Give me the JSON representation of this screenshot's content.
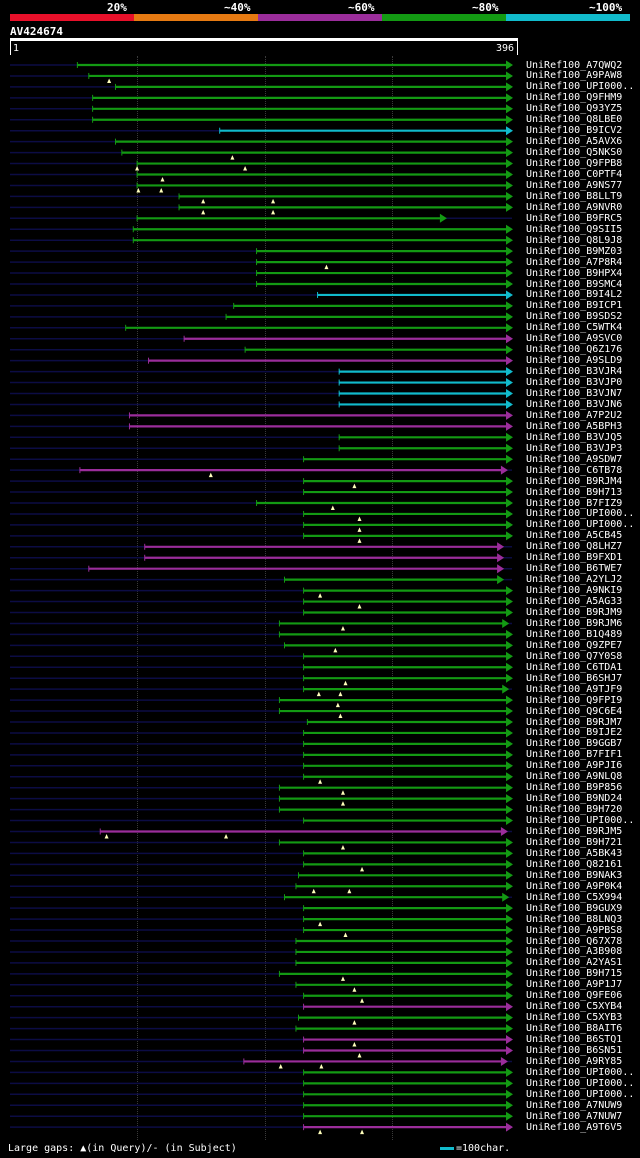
{
  "legend": {
    "items": [
      {
        "label": "20%",
        "color": "#e8102a"
      },
      {
        "label": "~40%",
        "color": "#e67a12"
      },
      {
        "label": "~60%",
        "color": "#9b2d9b"
      },
      {
        "label": "~80%",
        "color": "#139a13"
      },
      {
        "label": "~100%",
        "color": "#11bbcc"
      }
    ]
  },
  "query": {
    "name": "AV424674",
    "start_label": "1",
    "end_label": "396"
  },
  "footer": {
    "gaps_text": "Large gaps: ▲(in Query)/- (in Subject)",
    "scale_text": "=100char."
  },
  "chart_data": {
    "type": "alignment-overview",
    "query_length": 396,
    "identity_colors": {
      "g": "#139a13",
      "c": "#11bbcc",
      "p": "#9b2d9b"
    },
    "hits": [
      {
        "name": "UniRef100_A7QWQ2",
        "start": 54,
        "end": 396,
        "color": "g",
        "marks": []
      },
      {
        "name": "UniRef100_A9PAW8",
        "start": 63,
        "end": 396,
        "color": "g",
        "marks": [
          79
        ]
      },
      {
        "name": "UniRef100_UPI000..",
        "start": 84,
        "end": 396,
        "color": "g",
        "marks": []
      },
      {
        "name": "UniRef100_Q9FHM9",
        "start": 66,
        "end": 396,
        "color": "g",
        "marks": []
      },
      {
        "name": "UniRef100_Q93YZ5",
        "start": 66,
        "end": 396,
        "color": "g",
        "marks": []
      },
      {
        "name": "UniRef100_Q8LBE0",
        "start": 66,
        "end": 396,
        "color": "g",
        "marks": []
      },
      {
        "name": "UniRef100_B9ICV2",
        "start": 166,
        "end": 396,
        "color": "c",
        "marks": []
      },
      {
        "name": "UniRef100_A5AVX6",
        "start": 84,
        "end": 396,
        "color": "g",
        "marks": []
      },
      {
        "name": "UniRef100_Q5NKS0",
        "start": 89,
        "end": 396,
        "color": "g",
        "marks": [
          176
        ]
      },
      {
        "name": "UniRef100_Q9FPB8",
        "start": 101,
        "end": 396,
        "color": "g",
        "marks": [
          101,
          186
        ]
      },
      {
        "name": "UniRef100_C0PTF4",
        "start": 101,
        "end": 396,
        "color": "g",
        "marks": [
          121
        ]
      },
      {
        "name": "UniRef100_A9NS77",
        "start": 101,
        "end": 396,
        "color": "g",
        "marks": [
          102,
          120
        ]
      },
      {
        "name": "UniRef100_B8LLT9",
        "start": 134,
        "end": 396,
        "color": "g",
        "marks": [
          153,
          208
        ]
      },
      {
        "name": "UniRef100_A9NVR0",
        "start": 134,
        "end": 396,
        "color": "g",
        "marks": [
          153,
          208
        ]
      },
      {
        "name": "UniRef100_B9FRC5",
        "start": 101,
        "end": 344,
        "color": "g",
        "marks": []
      },
      {
        "name": "UniRef100_Q9SII5",
        "start": 98,
        "end": 396,
        "color": "g",
        "marks": []
      },
      {
        "name": "UniRef100_Q8L9J8",
        "start": 98,
        "end": 396,
        "color": "g",
        "marks": []
      },
      {
        "name": "UniRef100_B9MZ03",
        "start": 195,
        "end": 396,
        "color": "g",
        "marks": []
      },
      {
        "name": "UniRef100_A7P8R4",
        "start": 195,
        "end": 396,
        "color": "g",
        "marks": [
          250
        ]
      },
      {
        "name": "UniRef100_B9HPX4",
        "start": 195,
        "end": 396,
        "color": "g",
        "marks": []
      },
      {
        "name": "UniRef100_B9SMC4",
        "start": 195,
        "end": 396,
        "color": "g",
        "marks": []
      },
      {
        "name": "UniRef100_B9I4L2",
        "start": 243,
        "end": 396,
        "color": "c",
        "marks": []
      },
      {
        "name": "UniRef100_B9ICP1",
        "start": 177,
        "end": 396,
        "color": "g",
        "marks": []
      },
      {
        "name": "UniRef100_B9SDS2",
        "start": 171,
        "end": 396,
        "color": "g",
        "marks": []
      },
      {
        "name": "UniRef100_C5WTK4",
        "start": 92,
        "end": 396,
        "color": "g",
        "marks": []
      },
      {
        "name": "UniRef100_A9SVC0",
        "start": 138,
        "end": 396,
        "color": "p",
        "marks": []
      },
      {
        "name": "UniRef100_Q6Z176",
        "start": 186,
        "end": 396,
        "color": "g",
        "marks": []
      },
      {
        "name": "UniRef100_A9SLD9",
        "start": 110,
        "end": 396,
        "color": "p",
        "marks": []
      },
      {
        "name": "UniRef100_B3VJR4",
        "start": 260,
        "end": 396,
        "color": "c",
        "marks": []
      },
      {
        "name": "UniRef100_B3VJP0",
        "start": 260,
        "end": 396,
        "color": "c",
        "marks": []
      },
      {
        "name": "UniRef100_B3VJN7",
        "start": 260,
        "end": 396,
        "color": "c",
        "marks": []
      },
      {
        "name": "UniRef100_B3VJN6",
        "start": 260,
        "end": 396,
        "color": "c",
        "marks": []
      },
      {
        "name": "UniRef100_A7P2U2",
        "start": 95,
        "end": 396,
        "color": "p",
        "marks": []
      },
      {
        "name": "UniRef100_A5BPH3",
        "start": 95,
        "end": 396,
        "color": "p",
        "marks": []
      },
      {
        "name": "UniRef100_B3VJQ5",
        "start": 260,
        "end": 396,
        "color": "g",
        "marks": []
      },
      {
        "name": "UniRef100_B3VJP3",
        "start": 260,
        "end": 396,
        "color": "g",
        "marks": []
      },
      {
        "name": "UniRef100_A9SDW7",
        "start": 232,
        "end": 396,
        "color": "g",
        "marks": []
      },
      {
        "name": "UniRef100_C6TB78",
        "start": 56,
        "end": 392,
        "color": "p",
        "marks": [
          159
        ]
      },
      {
        "name": "UniRef100_B9RJM4",
        "start": 232,
        "end": 396,
        "color": "g",
        "marks": [
          272
        ]
      },
      {
        "name": "UniRef100_B9H713",
        "start": 232,
        "end": 396,
        "color": "g",
        "marks": []
      },
      {
        "name": "UniRef100_B7FIZ9",
        "start": 195,
        "end": 396,
        "color": "g",
        "marks": [
          255
        ]
      },
      {
        "name": "UniRef100_UPI000..",
        "start": 232,
        "end": 396,
        "color": "g",
        "marks": [
          276
        ]
      },
      {
        "name": "UniRef100_UPI000..",
        "start": 232,
        "end": 396,
        "color": "g",
        "marks": [
          276
        ]
      },
      {
        "name": "UniRef100_A5CB45",
        "start": 232,
        "end": 396,
        "color": "g",
        "marks": [
          276
        ]
      },
      {
        "name": "UniRef100_Q8LHZ7",
        "start": 107,
        "end": 389,
        "color": "p",
        "marks": []
      },
      {
        "name": "UniRef100_B9FXD1",
        "start": 107,
        "end": 389,
        "color": "p",
        "marks": []
      },
      {
        "name": "UniRef100_B6TWE7",
        "start": 63,
        "end": 389,
        "color": "p",
        "marks": []
      },
      {
        "name": "UniRef100_A2YLJ2",
        "start": 217,
        "end": 389,
        "color": "g",
        "marks": []
      },
      {
        "name": "UniRef100_A9NKI9",
        "start": 232,
        "end": 396,
        "color": "g",
        "marks": [
          245
        ]
      },
      {
        "name": "UniRef100_A5AG33",
        "start": 232,
        "end": 396,
        "color": "g",
        "marks": [
          276
        ]
      },
      {
        "name": "UniRef100_B9RJM9",
        "start": 232,
        "end": 396,
        "color": "g",
        "marks": []
      },
      {
        "name": "UniRef100_B9RJM6",
        "start": 213,
        "end": 393,
        "color": "g",
        "marks": [
          263
        ]
      },
      {
        "name": "UniRef100_B1Q489",
        "start": 213,
        "end": 396,
        "color": "g",
        "marks": []
      },
      {
        "name": "UniRef100_Q9ZPE7",
        "start": 217,
        "end": 396,
        "color": "g",
        "marks": [
          257
        ]
      },
      {
        "name": "UniRef100_Q7Y0S8",
        "start": 232,
        "end": 396,
        "color": "g",
        "marks": []
      },
      {
        "name": "UniRef100_C6TDA1",
        "start": 232,
        "end": 396,
        "color": "g",
        "marks": []
      },
      {
        "name": "UniRef100_B6SHJ7",
        "start": 232,
        "end": 396,
        "color": "g",
        "marks": [
          265
        ]
      },
      {
        "name": "UniRef100_A9TJF9",
        "start": 232,
        "end": 393,
        "color": "g",
        "marks": [
          244,
          261
        ]
      },
      {
        "name": "UniRef100_Q9FPI9",
        "start": 213,
        "end": 396,
        "color": "g",
        "marks": [
          259
        ]
      },
      {
        "name": "UniRef100_Q9C6E4",
        "start": 213,
        "end": 396,
        "color": "g",
        "marks": [
          261
        ]
      },
      {
        "name": "UniRef100_B9RJM7",
        "start": 235,
        "end": 396,
        "color": "g",
        "marks": []
      },
      {
        "name": "UniRef100_B9IJE2",
        "start": 232,
        "end": 396,
        "color": "g",
        "marks": []
      },
      {
        "name": "UniRef100_B9GGB7",
        "start": 232,
        "end": 396,
        "color": "g",
        "marks": []
      },
      {
        "name": "UniRef100_B7FIF1",
        "start": 232,
        "end": 396,
        "color": "g",
        "marks": []
      },
      {
        "name": "UniRef100_A9PJI6",
        "start": 232,
        "end": 396,
        "color": "g",
        "marks": []
      },
      {
        "name": "UniRef100_A9NLQ8",
        "start": 232,
        "end": 396,
        "color": "g",
        "marks": [
          245
        ]
      },
      {
        "name": "UniRef100_B9P856",
        "start": 213,
        "end": 396,
        "color": "g",
        "marks": [
          263
        ]
      },
      {
        "name": "UniRef100_B9ND24",
        "start": 213,
        "end": 396,
        "color": "g",
        "marks": [
          263
        ]
      },
      {
        "name": "UniRef100_B9H720",
        "start": 213,
        "end": 396,
        "color": "g",
        "marks": []
      },
      {
        "name": "UniRef100_UPI000..",
        "start": 232,
        "end": 396,
        "color": "g",
        "marks": []
      },
      {
        "name": "UniRef100_B9RJM5",
        "start": 72,
        "end": 392,
        "color": "p",
        "marks": [
          77,
          171
        ]
      },
      {
        "name": "UniRef100_B9H721",
        "start": 213,
        "end": 396,
        "color": "g",
        "marks": [
          263
        ]
      },
      {
        "name": "UniRef100_A5BK43",
        "start": 232,
        "end": 396,
        "color": "g",
        "marks": []
      },
      {
        "name": "UniRef100_Q82161",
        "start": 232,
        "end": 396,
        "color": "g",
        "marks": [
          278
        ]
      },
      {
        "name": "UniRef100_B9NAK3",
        "start": 228,
        "end": 396,
        "color": "g",
        "marks": []
      },
      {
        "name": "UniRef100_A9P0K4",
        "start": 226,
        "end": 396,
        "color": "g",
        "marks": [
          240,
          268
        ]
      },
      {
        "name": "UniRef100_C5X994",
        "start": 217,
        "end": 393,
        "color": "g",
        "marks": []
      },
      {
        "name": "UniRef100_B9GUX9",
        "start": 232,
        "end": 396,
        "color": "g",
        "marks": []
      },
      {
        "name": "UniRef100_B8LNQ3",
        "start": 232,
        "end": 396,
        "color": "g",
        "marks": [
          245
        ]
      },
      {
        "name": "UniRef100_A9PBS8",
        "start": 232,
        "end": 396,
        "color": "g",
        "marks": [
          265
        ]
      },
      {
        "name": "UniRef100_Q67X78",
        "start": 226,
        "end": 396,
        "color": "g",
        "marks": []
      },
      {
        "name": "UniRef100_A3B908",
        "start": 226,
        "end": 396,
        "color": "g",
        "marks": []
      },
      {
        "name": "UniRef100_A2YAS1",
        "start": 226,
        "end": 396,
        "color": "g",
        "marks": []
      },
      {
        "name": "UniRef100_B9H715",
        "start": 213,
        "end": 396,
        "color": "g",
        "marks": [
          263
        ]
      },
      {
        "name": "UniRef100_A9P1J7",
        "start": 226,
        "end": 396,
        "color": "g",
        "marks": [
          272
        ]
      },
      {
        "name": "UniRef100_Q9FE06",
        "start": 232,
        "end": 396,
        "color": "g",
        "marks": [
          278
        ]
      },
      {
        "name": "UniRef100_C5XYB4",
        "start": 232,
        "end": 396,
        "color": "p",
        "marks": []
      },
      {
        "name": "UniRef100_C5XYB3",
        "start": 228,
        "end": 396,
        "color": "g",
        "marks": [
          272
        ]
      },
      {
        "name": "UniRef100_B8AIT6",
        "start": 226,
        "end": 396,
        "color": "g",
        "marks": []
      },
      {
        "name": "UniRef100_B6STQ1",
        "start": 232,
        "end": 396,
        "color": "p",
        "marks": [
          272
        ]
      },
      {
        "name": "UniRef100_B6SN51",
        "start": 232,
        "end": 396,
        "color": "p",
        "marks": [
          276
        ]
      },
      {
        "name": "UniRef100_A9RY85",
        "start": 185,
        "end": 392,
        "color": "p",
        "marks": [
          214,
          246
        ]
      },
      {
        "name": "UniRef100_UPI000..",
        "start": 232,
        "end": 396,
        "color": "g",
        "marks": []
      },
      {
        "name": "UniRef100_UPI000..",
        "start": 232,
        "end": 396,
        "color": "g",
        "marks": []
      },
      {
        "name": "UniRef100_UPI000..",
        "start": 232,
        "end": 396,
        "color": "g",
        "marks": []
      },
      {
        "name": "UniRef100_A7NUW9",
        "start": 232,
        "end": 396,
        "color": "g",
        "marks": []
      },
      {
        "name": "UniRef100_A7NUW7",
        "start": 232,
        "end": 396,
        "color": "g",
        "marks": []
      },
      {
        "name": "UniRef100_A9T6V5",
        "start": 232,
        "end": 396,
        "color": "p",
        "marks": [
          245,
          278
        ]
      }
    ]
  }
}
